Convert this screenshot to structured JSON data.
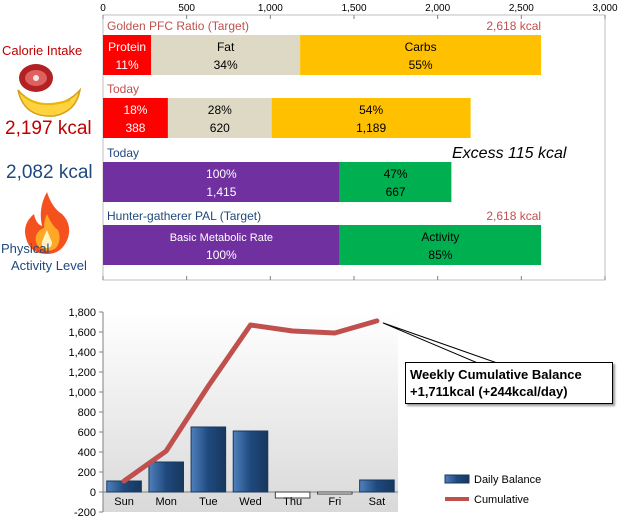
{
  "left_panel": {
    "calorie_intake_label": "Calorie Intake",
    "intake_value": "2,197 kcal",
    "expenditure_value": "2,082 kcal",
    "pal_line1": "Physical",
    "pal_line2": "Activity Level",
    "colors": {
      "intake": "#c00000",
      "expenditure": "#1f497d"
    }
  },
  "chart_data": [
    {
      "type": "bar",
      "orientation": "horizontal-stacked",
      "x_ticks": [
        "0",
        "500",
        "1,000",
        "1,500",
        "2,000",
        "2,500",
        "3,000"
      ],
      "xlim": [
        0,
        3000
      ],
      "grid": false,
      "rows": [
        {
          "title": "Golden PFC Ratio (Target)",
          "title_color": "#c0504d",
          "total_label": "2,618 kcal",
          "segments": [
            {
              "name": "Protein",
              "percent": "11%",
              "value": 288,
              "color": "#ff0000",
              "text_color": "#ffffff"
            },
            {
              "name": "Fat",
              "percent": "34%",
              "value": 890,
              "color": "#ddd9c4",
              "text_color": "#000000"
            },
            {
              "name": "Carbs",
              "percent": "55%",
              "value": 1440,
              "color": "#ffc000",
              "text_color": "#000000"
            }
          ]
        },
        {
          "title": "Today",
          "title_color": "#c0504d",
          "total_label": "",
          "segments": [
            {
              "percent": "18%",
              "value": 388,
              "value_label": "388",
              "color": "#ff0000",
              "text_color": "#ffffff"
            },
            {
              "percent": "28%",
              "value": 620,
              "value_label": "620",
              "color": "#ddd9c4",
              "text_color": "#000000"
            },
            {
              "percent": "54%",
              "value": 1189,
              "value_label": "1,189",
              "color": "#ffc000",
              "text_color": "#000000"
            }
          ]
        },
        {
          "title": "Today",
          "title_color": "#1f497d",
          "total_label": "",
          "segments": [
            {
              "percent": "100%",
              "value": 1415,
              "value_label": "1,415",
              "color": "#7030a0",
              "text_color": "#ffffff"
            },
            {
              "percent": "47%",
              "value": 667,
              "value_label": "667",
              "color": "#00b050",
              "text_color": "#000000"
            }
          ]
        },
        {
          "title": "Hunter-gatherer  PAL (Target)",
          "title_color": "#1f497d",
          "total_label": "2,618 kcal",
          "segments": [
            {
              "name": "Basic Metabolic Rate",
              "percent": "100%",
              "value": 1415,
              "color": "#7030a0",
              "text_color": "#ffffff"
            },
            {
              "name": "Activity",
              "percent": "85%",
              "value": 1203,
              "color": "#00b050",
              "text_color": "#000000"
            }
          ]
        }
      ],
      "annotation": "Excess 115 kcal"
    },
    {
      "type": "bar+line",
      "categories": [
        "Sun",
        "Mon",
        "Tue",
        "Wed",
        "Thu",
        "Fri",
        "Sat"
      ],
      "y_ticks": [
        "-200",
        "0",
        "200",
        "400",
        "600",
        "800",
        "1,000",
        "1,200",
        "1,400",
        "1,600",
        "1,800"
      ],
      "ylim": [
        -200,
        1800
      ],
      "grid": false,
      "legend_position": "bottom-right",
      "series": [
        {
          "name": "Daily Balance",
          "type": "bar",
          "color": "#1f497d",
          "values": [
            110,
            300,
            650,
            610,
            -60,
            -20,
            120
          ]
        },
        {
          "name": "Cumulative",
          "type": "line",
          "color": "#c0504d",
          "values": [
            110,
            410,
            1060,
            1670,
            1610,
            1590,
            1711
          ]
        }
      ],
      "callout": {
        "line1": "Weekly Cumulative Balance",
        "line2": "+1,711kcal (+244kcal/day)"
      }
    }
  ]
}
